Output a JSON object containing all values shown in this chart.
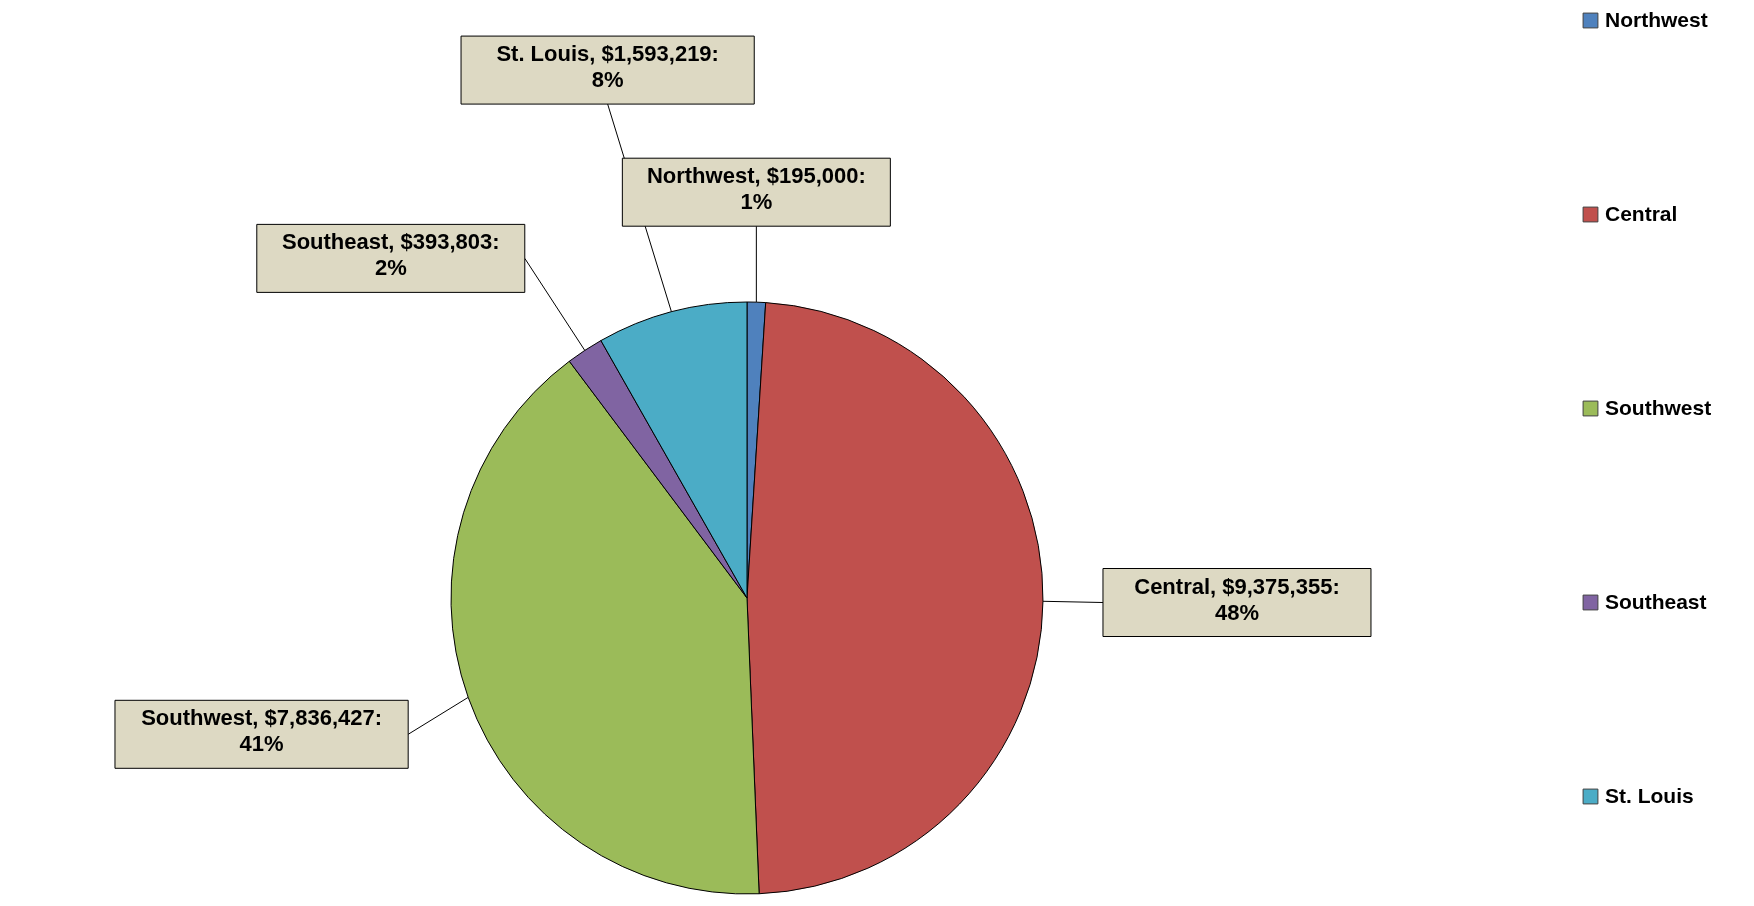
{
  "chart_data": {
    "type": "pie",
    "categories": [
      "Northwest",
      "Central",
      "Southwest",
      "Southeast",
      "St. Louis"
    ],
    "values": [
      195000,
      9375355,
      7836427,
      393803,
      1593219
    ],
    "colors": [
      "#4f81bd",
      "#c0504d",
      "#9bbb59",
      "#8064a2",
      "#4bacc6"
    ],
    "value_labels": [
      "Northwest, $195,000:\n1%",
      "Central, $9,375,355:\n48%",
      "Southwest, $7,836,427:\n41%",
      "Southeast, $393,803:\n2%",
      "St. Louis, $1,593,219:\n8%"
    ],
    "legend": "right"
  }
}
